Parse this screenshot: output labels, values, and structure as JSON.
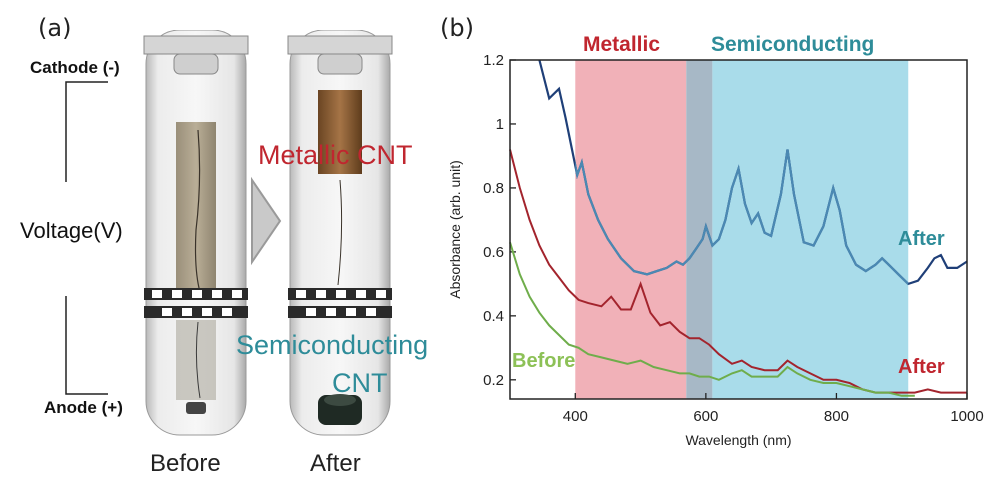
{
  "panel_a": {
    "label": "(a)",
    "cathode": "Cathode (-)",
    "voltage": "Voltage(V)",
    "anode": "Anode (+)",
    "before": "Before",
    "after": "After",
    "metallic_cnt": "Metallic CNT",
    "semiconducting_1": "Semiconducting",
    "semiconducting_2": "CNT"
  },
  "panel_b": {
    "label": "(b)",
    "band_metallic": "Metallic",
    "band_semiconducting": "Semiconducting",
    "label_after_top": "After",
    "label_after_bottom": "After",
    "label_before": "Before"
  },
  "colors": {
    "metallic_band": "#f1b1b8",
    "semiconducting_band": "#a9dcea",
    "overlap_band": "#a7b8c6",
    "navy": "#1f3f78",
    "blue": "#4b89b3",
    "red": "#a3242d",
    "green": "#6fad4b",
    "label_red": "#c0262f",
    "label_teal": "#2e8c99",
    "label_green": "#8dc157"
  },
  "chart_data": {
    "type": "line",
    "xlabel": "Wavelength (nm)",
    "ylabel": "Absorbance (arb. unit)",
    "xlim": [
      300,
      1000
    ],
    "ylim": [
      0.14,
      1.2
    ],
    "xticks": [
      400,
      600,
      800,
      1000
    ],
    "yticks": [
      0.2,
      0.4,
      0.6,
      0.8,
      1,
      1.2
    ],
    "ytick_labels": [
      "0.2",
      "0.4",
      "0.6",
      "0.8",
      "1",
      "1.2"
    ],
    "bands": [
      {
        "name": "Metallic",
        "range": [
          400,
          570
        ]
      },
      {
        "name": "overlap",
        "range": [
          570,
          610
        ]
      },
      {
        "name": "Semiconducting",
        "range": [
          610,
          910
        ]
      }
    ],
    "series": [
      {
        "x": [
          345,
          360,
          375,
          385,
          395,
          403,
          410,
          420,
          435,
          450,
          470,
          490,
          510,
          525,
          540,
          555,
          565,
          575,
          585,
          595,
          600,
          610,
          620,
          630,
          640,
          650,
          660,
          670,
          680,
          690,
          700,
          715,
          725,
          735,
          750,
          765,
          780,
          795,
          805,
          815,
          830,
          845,
          860,
          870,
          880,
          895,
          910,
          925,
          940,
          950,
          960,
          970,
          985,
          1000
        ],
        "y": [
          1.2,
          1.08,
          1.11,
          1.02,
          0.92,
          0.84,
          0.88,
          0.78,
          0.7,
          0.64,
          0.58,
          0.54,
          0.53,
          0.54,
          0.55,
          0.57,
          0.56,
          0.58,
          0.61,
          0.64,
          0.68,
          0.62,
          0.64,
          0.7,
          0.8,
          0.86,
          0.75,
          0.69,
          0.72,
          0.66,
          0.65,
          0.78,
          0.92,
          0.78,
          0.63,
          0.62,
          0.68,
          0.8,
          0.73,
          0.62,
          0.56,
          0.54,
          0.56,
          0.58,
          0.56,
          0.53,
          0.5,
          0.51,
          0.55,
          0.58,
          0.59,
          0.55,
          0.55,
          0.57
        ]
      },
      {
        "x": [
          300,
          315,
          330,
          345,
          360,
          375,
          390,
          405,
          420,
          440,
          455,
          470,
          485,
          500,
          515,
          530,
          545,
          560,
          575,
          590,
          605,
          620,
          640,
          655,
          670,
          690,
          710,
          725,
          740,
          760,
          780,
          800,
          820,
          840,
          860,
          880,
          900,
          920,
          940,
          960,
          980,
          1000
        ],
        "y": [
          0.92,
          0.8,
          0.7,
          0.62,
          0.56,
          0.52,
          0.48,
          0.45,
          0.44,
          0.43,
          0.46,
          0.42,
          0.42,
          0.5,
          0.41,
          0.37,
          0.38,
          0.35,
          0.33,
          0.33,
          0.31,
          0.28,
          0.25,
          0.26,
          0.24,
          0.23,
          0.23,
          0.26,
          0.24,
          0.22,
          0.2,
          0.2,
          0.19,
          0.17,
          0.16,
          0.16,
          0.16,
          0.16,
          0.17,
          0.16,
          0.16,
          0.16
        ]
      },
      {
        "x": [
          300,
          315,
          330,
          345,
          360,
          375,
          390,
          405,
          420,
          440,
          460,
          480,
          500,
          520,
          540,
          560,
          575,
          590,
          605,
          620,
          640,
          655,
          670,
          690,
          710,
          725,
          740,
          760,
          780,
          800,
          820,
          840,
          860,
          880,
          900,
          920
        ],
        "y": [
          0.63,
          0.53,
          0.46,
          0.41,
          0.37,
          0.34,
          0.31,
          0.3,
          0.28,
          0.27,
          0.26,
          0.25,
          0.26,
          0.24,
          0.23,
          0.22,
          0.22,
          0.21,
          0.21,
          0.2,
          0.22,
          0.23,
          0.21,
          0.21,
          0.21,
          0.24,
          0.22,
          0.2,
          0.19,
          0.19,
          0.18,
          0.17,
          0.16,
          0.16,
          0.15,
          0.15
        ]
      }
    ]
  }
}
